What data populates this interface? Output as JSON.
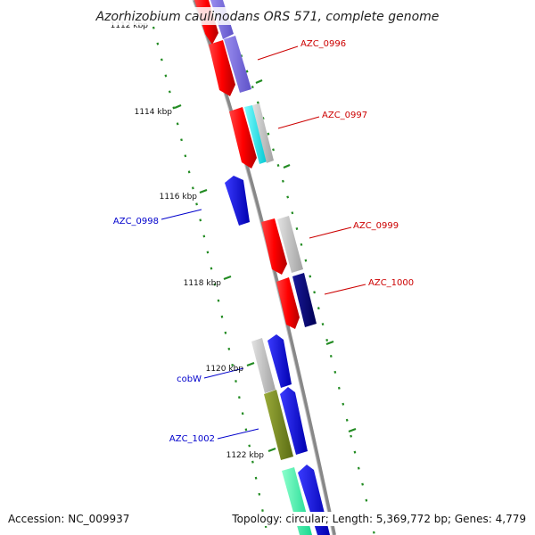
{
  "title": "Azorhizobium caulinodans ORS 571, complete genome",
  "footer": {
    "accession": "Accession: NC_009937",
    "stats": "Topology: circular; Length: 5,369,772 bp; Genes: 4,779"
  },
  "colors": {
    "backbone": "#888888",
    "tick": "#228B22",
    "forward_label": "#cc0000",
    "reverse_label": "#0000cc"
  },
  "kbp_labels": [
    {
      "text": "1112 kbp",
      "kbp": 1112
    },
    {
      "text": "1114 kbp",
      "kbp": 1114
    },
    {
      "text": "1116 kbp",
      "kbp": 1116
    },
    {
      "text": "1118 kbp",
      "kbp": 1118
    },
    {
      "text": "1120 kbp",
      "kbp": 1120
    },
    {
      "text": "1122 kbp",
      "kbp": 1122
    }
  ],
  "gene_labels": [
    {
      "text": "AZC_0996",
      "strand": "forward"
    },
    {
      "text": "AZC_0997",
      "strand": "forward"
    },
    {
      "text": "AZC_0998",
      "strand": "reverse"
    },
    {
      "text": "AZC_0999",
      "strand": "forward"
    },
    {
      "text": "AZC_1000",
      "strand": "forward"
    },
    {
      "text": "cobW",
      "strand": "reverse"
    },
    {
      "text": "AZC_1002",
      "strand": "reverse"
    }
  ]
}
